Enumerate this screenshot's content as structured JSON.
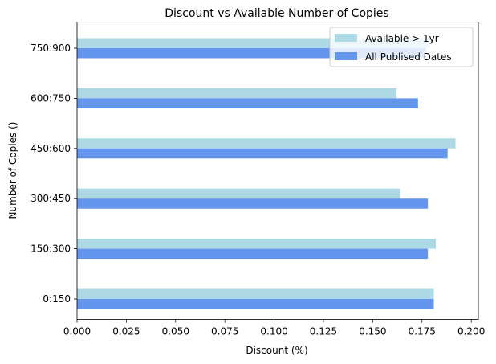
{
  "chart_data": {
    "type": "bar",
    "orientation": "horizontal",
    "title": "Discount vs Available Number of Copies",
    "xlabel": "Discount (%)",
    "ylabel": "Number of Copies ()",
    "categories": [
      "0:150",
      "150:300",
      "300:450",
      "450:600",
      "600:750",
      "750:900"
    ],
    "xlim": [
      0,
      0.2036
    ],
    "xticks": [
      "0.000",
      "0.025",
      "0.050",
      "0.075",
      "0.100",
      "0.125",
      "0.150",
      "0.175",
      "0.200"
    ],
    "series": [
      {
        "name": "Available > 1yr",
        "color": "#add8e6",
        "values": [
          0.181,
          0.182,
          0.164,
          0.192,
          0.162,
          0.179
        ]
      },
      {
        "name": "All Publised Dates",
        "color": "#6495ed",
        "values": [
          0.181,
          0.178,
          0.178,
          0.188,
          0.173,
          0.177
        ]
      }
    ],
    "legend": {
      "position": "top-right"
    },
    "grid": false
  }
}
